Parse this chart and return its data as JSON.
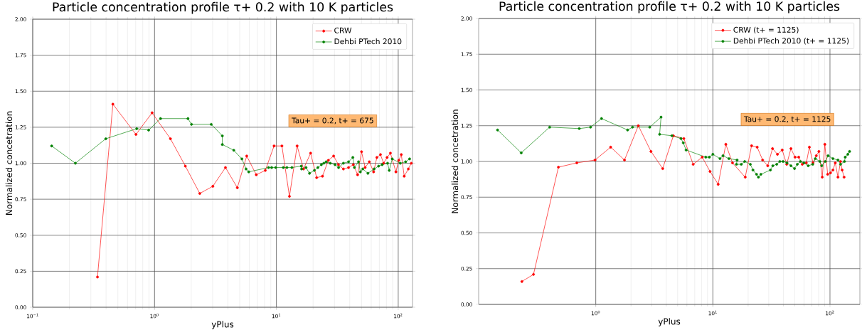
{
  "chart_data": [
    {
      "type": "line",
      "title": "Particle concentration profile τ+ 0.2 with 10 K particles",
      "xlabel": "yPlus",
      "ylabel": "Normalized concetration",
      "log": "x",
      "grid": true,
      "legend": "top right",
      "marker": "circle",
      "line_style": "solid",
      "xlim": [
        0.1,
        131
      ],
      "ylim": [
        0,
        2
      ],
      "xticks": [
        {
          "value": 0.1,
          "label": "10$^{−1}$"
        },
        {
          "value": 1,
          "label": "10$^{0}$"
        },
        {
          "value": 10,
          "label": "10$^{1}$"
        },
        {
          "value": 100,
          "label": "10$^{2}$"
        }
      ],
      "yticks": [
        {
          "value": 0,
          "label": "0.00"
        },
        {
          "value": 0.25,
          "label": "0.25"
        },
        {
          "value": 0.5,
          "label": "0.50"
        },
        {
          "value": 0.75,
          "label": "0.75"
        },
        {
          "value": 1,
          "label": "1.00"
        },
        {
          "value": 1.25,
          "label": "1.25"
        },
        {
          "value": 1.5,
          "label": "1.50"
        },
        {
          "value": 1.75,
          "label": "1.75"
        },
        {
          "value": 2,
          "label": "2.00"
        }
      ],
      "annotations": [
        "Tau+ = 0.2, t+ = 675"
      ],
      "series": [
        {
          "name": "CRW",
          "color": "#ff0000",
          "x": [
            0.34,
            0.455,
            0.704,
            0.955,
            1.35,
            1.79,
            2.35,
            3.01,
            3.82,
            4.78,
            5.71,
            6.84,
            8.11,
            9.57,
            11.1,
            12.8,
            14.8,
            16.7,
            19.1,
            21.4,
            23.9,
            26.7,
            29.5,
            32.3,
            35.5,
            39.1,
            42.8,
            46.4,
            50.0,
            53.5,
            57.9,
            62.8,
            66.8,
            71.5,
            75.8,
            81.0,
            86.3,
            95.7,
            101,
            106,
            112,
            121,
            128
          ],
          "values": [
            0.21,
            1.41,
            1.2,
            1.35,
            1.17,
            0.98,
            0.79,
            0.84,
            0.97,
            0.83,
            1.05,
            0.92,
            0.95,
            1.12,
            1.12,
            0.77,
            1.12,
            0.96,
            1.07,
            0.9,
            0.91,
            1.02,
            1.05,
            0.99,
            0.96,
            0.97,
            0.99,
            0.92,
            1.08,
            0.97,
            1.01,
            0.94,
            1.04,
            1.06,
            1.0,
            1.04,
            1.07,
            0.94,
            1.02,
            1.06,
            0.91,
            0.96,
            1.0
          ]
        },
        {
          "name": "Dehbi PTech 2010",
          "color": "#008000",
          "x": [
            0.143,
            0.224,
            0.398,
            0.714,
            0.894,
            1.12,
            1.88,
            2.01,
            2.92,
            3.6,
            3.6,
            4.47,
            5.21,
            5.64,
            5.93,
            8.63,
            9.15,
            9.87,
            11.4,
            12.2,
            13.4,
            16.0,
            16.1,
            17.5,
            18.7,
            20.5,
            21.9,
            23.4,
            24.5,
            25.6,
            27.7,
            30.3,
            32.4,
            35.5,
            39.1,
            42.4,
            43.7,
            47.2,
            48.9,
            51.2,
            56.4,
            63.4,
            69.0,
            73.8,
            81.8,
            84.4,
            89.3,
            104,
            115,
            124
          ],
          "values": [
            1.12,
            1.0,
            1.17,
            1.24,
            1.23,
            1.31,
            1.31,
            1.27,
            1.27,
            1.19,
            1.13,
            1.09,
            1.03,
            0.96,
            0.94,
            0.97,
            0.97,
            0.97,
            0.97,
            0.97,
            0.97,
            0.98,
            0.96,
            0.97,
            0.93,
            0.95,
            0.97,
            0.99,
            1.0,
            1.01,
            1.0,
            0.99,
            0.97,
            1.0,
            1.01,
            1.04,
            0.97,
            1.01,
            0.94,
            0.96,
            0.93,
            0.96,
            0.98,
            0.99,
            1.0,
            0.95,
            1.03,
            1.0,
            1.01,
            1.03
          ]
        }
      ]
    },
    {
      "type": "line",
      "title": "Particle concentration profile τ+ 0.2 with 10 K particles",
      "xlabel": "yPlus",
      "ylabel": "Normalized concetration",
      "log": "x",
      "grid": true,
      "legend": "top right",
      "marker": "circle",
      "line_style": "solid",
      "xlim": [
        0.1,
        180
      ],
      "ylim": [
        0,
        2
      ],
      "xticks": [
        {
          "value": 1,
          "label": "10$^{0}$"
        },
        {
          "value": 10,
          "label": "10$^{1}$"
        },
        {
          "value": 100,
          "label": "10$^{2}$"
        }
      ],
      "yticks": [
        {
          "value": 0,
          "label": "0.00"
        },
        {
          "value": 0.25,
          "label": "0.25"
        },
        {
          "value": 0.5,
          "label": "0.50"
        },
        {
          "value": 0.75,
          "label": "0.75"
        },
        {
          "value": 1,
          "label": "1.00"
        },
        {
          "value": 1.25,
          "label": "1.25"
        },
        {
          "value": 1.5,
          "label": "1.50"
        },
        {
          "value": 1.75,
          "label": "1.75"
        },
        {
          "value": 2,
          "label": "2.00"
        }
      ],
      "annotations": [
        "Tau+ = 0.2, t+ = 1125"
      ],
      "series": [
        {
          "name": "CRW (t+ = 1125)",
          "color": "#ff0000",
          "x": [
            0.234,
            0.294,
            0.48,
            0.689,
            0.986,
            1.34,
            1.76,
            2.31,
            2.96,
            3.73,
            4.6,
            5.65,
            6.79,
            8.11,
            9.46,
            11.1,
            12.9,
            14.7,
            18.9,
            21.4,
            23.9,
            26.6,
            29.4,
            32.3,
            35.6,
            39.1,
            42.7,
            46.4,
            50.3,
            54.1,
            58.0,
            62.8,
            66.7,
            71.6,
            76.4,
            80.4,
            85.9,
            90.4,
            95.5,
            101,
            106,
            111,
            117,
            123,
            127,
            132
          ],
          "values": [
            0.16,
            0.21,
            0.96,
            0.99,
            1.01,
            1.1,
            1.01,
            1.25,
            1.07,
            0.95,
            1.18,
            1.16,
            0.98,
            1.03,
            0.93,
            0.84,
            1.12,
            0.99,
            0.89,
            1.11,
            1.1,
            1.01,
            0.97,
            1.09,
            1.05,
            1.08,
            0.98,
            1.09,
            1.03,
            1.03,
            0.98,
            0.99,
            1.1,
            0.99,
            1.04,
            1.07,
            0.89,
            1.12,
            0.91,
            0.92,
            0.94,
            0.99,
            0.89,
            1.0,
            0.94,
            0.89
          ]
        },
        {
          "name": "Dehbi PTech 2010 (t+ = 1125)",
          "color": "#008000",
          "x": [
            0.145,
            0.231,
            0.404,
            0.723,
            0.903,
            1.12,
            1.87,
            2.06,
            2.89,
            3.61,
            3.51,
            4.47,
            5.34,
            5.59,
            5.91,
            8.7,
            9.33,
            10.0,
            11.5,
            12.2,
            13.7,
            16.1,
            15.9,
            17.5,
            18.7,
            20.9,
            22.0,
            23.6,
            24.5,
            25.7,
            31.0,
            32.5,
            35.1,
            37.3,
            39.8,
            42.9,
            46.4,
            49.8,
            52.6,
            55.9,
            59.9,
            65.2,
            71.2,
            75.0,
            81.9,
            85.0,
            91.2,
            96.4,
            106,
            117,
            123,
            133,
            135,
            142,
            147
          ],
          "values": [
            1.22,
            1.06,
            1.24,
            1.23,
            1.24,
            1.3,
            1.22,
            1.24,
            1.24,
            1.31,
            1.19,
            1.18,
            1.16,
            1.13,
            1.08,
            1.03,
            1.03,
            1.05,
            1.02,
            1.04,
            1.02,
            1.01,
            0.98,
            0.98,
            1.0,
            0.98,
            0.94,
            0.91,
            0.89,
            0.91,
            0.94,
            0.97,
            0.98,
            1.0,
            1.0,
            0.99,
            0.97,
            0.95,
            0.98,
            1.0,
            0.99,
            0.97,
            0.98,
            1.02,
            1.0,
            0.97,
            1.0,
            1.04,
            1.02,
            1.01,
            0.98,
            1.0,
            1.03,
            1.05,
            1.07
          ]
        }
      ]
    }
  ]
}
